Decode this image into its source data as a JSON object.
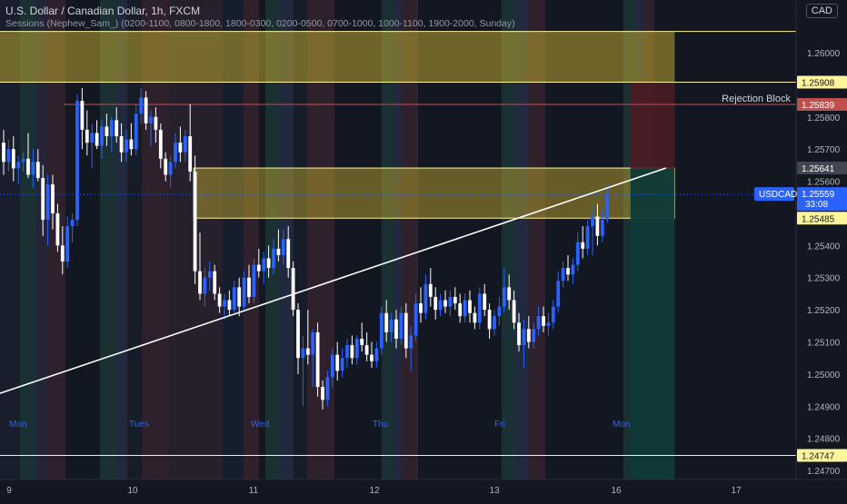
{
  "header": {
    "symbol_line": "U.S. Dollar / Canadian Dollar, 1h, FXCM",
    "indicator_line": "Sessions (Nephew_Sam_) (0200-1100, 0800-1800, 1800-0300, 0200-0500, 0700-1000, 1000-1100, 1900-2000, Sunday)",
    "currency_button": "CAD"
  },
  "colors": {
    "background": "#131722",
    "up_candle": "#2962ff",
    "down_candle": "#ffffff",
    "zone_fill": "#c9b22f",
    "zone_border": "#fff59d",
    "trendline": "#ffffff",
    "rejection_fill": "#4a1c24",
    "target_fill": "#0f3a38",
    "price_label": "#2962ff",
    "level_label": "#fff59d",
    "rejection_label": "#c0504d"
  },
  "chart_data": {
    "type": "candlestick",
    "title": "U.S. Dollar / Canadian Dollar, 1h, FXCM",
    "ylim": [
      1.2465,
      1.2612
    ],
    "y_ticks": [
      "1.26000",
      "1.25800",
      "1.25700",
      "1.25600",
      "1.25400",
      "1.25300",
      "1.25200",
      "1.25100",
      "1.25000",
      "1.24900",
      "1.24800",
      "1.24700"
    ],
    "x_tick_labels": [
      "9",
      "10",
      "11",
      "12",
      "13",
      "16",
      "17"
    ],
    "day_labels": [
      "Mon",
      "Tues",
      "Wed",
      "Thu",
      "Fri",
      "Mon"
    ],
    "candles": [
      {
        "o": 1.2572,
        "h": 1.2576,
        "l": 1.2562,
        "c": 1.2566
      },
      {
        "o": 1.2566,
        "h": 1.2573,
        "l": 1.2563,
        "c": 1.257
      },
      {
        "o": 1.257,
        "h": 1.2574,
        "l": 1.256,
        "c": 1.2564
      },
      {
        "o": 1.2564,
        "h": 1.2568,
        "l": 1.2559,
        "c": 1.2566
      },
      {
        "o": 1.2566,
        "h": 1.2569,
        "l": 1.2563,
        "c": 1.2567
      },
      {
        "o": 1.2567,
        "h": 1.2575,
        "l": 1.2561,
        "c": 1.2562
      },
      {
        "o": 1.2562,
        "h": 1.257,
        "l": 1.2558,
        "c": 1.2566
      },
      {
        "o": 1.2566,
        "h": 1.257,
        "l": 1.256,
        "c": 1.2561
      },
      {
        "o": 1.2561,
        "h": 1.2565,
        "l": 1.2543,
        "c": 1.2548
      },
      {
        "o": 1.2548,
        "h": 1.2562,
        "l": 1.254,
        "c": 1.2559
      },
      {
        "o": 1.2559,
        "h": 1.2562,
        "l": 1.2545,
        "c": 1.255
      },
      {
        "o": 1.255,
        "h": 1.2553,
        "l": 1.2538,
        "c": 1.254
      },
      {
        "o": 1.254,
        "h": 1.2546,
        "l": 1.2531,
        "c": 1.2535
      },
      {
        "o": 1.2535,
        "h": 1.2549,
        "l": 1.2533,
        "c": 1.2546
      },
      {
        "o": 1.2546,
        "h": 1.255,
        "l": 1.2541,
        "c": 1.2548
      },
      {
        "o": 1.2548,
        "h": 1.2587,
        "l": 1.2546,
        "c": 1.2585
      },
      {
        "o": 1.2585,
        "h": 1.2589,
        "l": 1.257,
        "c": 1.2576
      },
      {
        "o": 1.2576,
        "h": 1.2582,
        "l": 1.2568,
        "c": 1.2572
      },
      {
        "o": 1.2572,
        "h": 1.2578,
        "l": 1.2564,
        "c": 1.2575
      },
      {
        "o": 1.2575,
        "h": 1.2579,
        "l": 1.257,
        "c": 1.2571
      },
      {
        "o": 1.2571,
        "h": 1.2579,
        "l": 1.2567,
        "c": 1.2577
      },
      {
        "o": 1.2577,
        "h": 1.2581,
        "l": 1.2571,
        "c": 1.2574
      },
      {
        "o": 1.2574,
        "h": 1.258,
        "l": 1.2569,
        "c": 1.2579
      },
      {
        "o": 1.2579,
        "h": 1.2583,
        "l": 1.2572,
        "c": 1.2574
      },
      {
        "o": 1.2574,
        "h": 1.2578,
        "l": 1.2566,
        "c": 1.2569
      },
      {
        "o": 1.2569,
        "h": 1.2576,
        "l": 1.2566,
        "c": 1.2573
      },
      {
        "o": 1.2573,
        "h": 1.2578,
        "l": 1.2568,
        "c": 1.257
      },
      {
        "o": 1.257,
        "h": 1.2584,
        "l": 1.2568,
        "c": 1.2581
      },
      {
        "o": 1.2581,
        "h": 1.2589,
        "l": 1.2578,
        "c": 1.2586
      },
      {
        "o": 1.2586,
        "h": 1.2588,
        "l": 1.2576,
        "c": 1.2578
      },
      {
        "o": 1.2578,
        "h": 1.2582,
        "l": 1.2571,
        "c": 1.258
      },
      {
        "o": 1.258,
        "h": 1.2583,
        "l": 1.2572,
        "c": 1.2576
      },
      {
        "o": 1.2576,
        "h": 1.2578,
        "l": 1.2564,
        "c": 1.2567
      },
      {
        "o": 1.2567,
        "h": 1.2569,
        "l": 1.256,
        "c": 1.2562
      },
      {
        "o": 1.2562,
        "h": 1.2568,
        "l": 1.2558,
        "c": 1.2566
      },
      {
        "o": 1.2566,
        "h": 1.2575,
        "l": 1.2564,
        "c": 1.2572
      },
      {
        "o": 1.2572,
        "h": 1.2577,
        "l": 1.2566,
        "c": 1.2569
      },
      {
        "o": 1.2569,
        "h": 1.2576,
        "l": 1.2566,
        "c": 1.2574
      },
      {
        "o": 1.2574,
        "h": 1.2584,
        "l": 1.256,
        "c": 1.2563
      },
      {
        "o": 1.2563,
        "h": 1.2568,
        "l": 1.2528,
        "c": 1.2532
      },
      {
        "o": 1.2532,
        "h": 1.2544,
        "l": 1.2523,
        "c": 1.2525
      },
      {
        "o": 1.2525,
        "h": 1.2533,
        "l": 1.2521,
        "c": 1.253
      },
      {
        "o": 1.253,
        "h": 1.2535,
        "l": 1.2526,
        "c": 1.2532
      },
      {
        "o": 1.2532,
        "h": 1.2534,
        "l": 1.2523,
        "c": 1.2525
      },
      {
        "o": 1.2525,
        "h": 1.2527,
        "l": 1.2519,
        "c": 1.2521
      },
      {
        "o": 1.2521,
        "h": 1.2525,
        "l": 1.2517,
        "c": 1.2523
      },
      {
        "o": 1.2523,
        "h": 1.2526,
        "l": 1.2518,
        "c": 1.252
      },
      {
        "o": 1.252,
        "h": 1.2529,
        "l": 1.2519,
        "c": 1.2527
      },
      {
        "o": 1.2527,
        "h": 1.253,
        "l": 1.2518,
        "c": 1.2521
      },
      {
        "o": 1.2521,
        "h": 1.2532,
        "l": 1.252,
        "c": 1.253
      },
      {
        "o": 1.253,
        "h": 1.2534,
        "l": 1.2522,
        "c": 1.2524
      },
      {
        "o": 1.2524,
        "h": 1.2536,
        "l": 1.2522,
        "c": 1.2534
      },
      {
        "o": 1.2534,
        "h": 1.2539,
        "l": 1.253,
        "c": 1.2532
      },
      {
        "o": 1.2532,
        "h": 1.2538,
        "l": 1.2528,
        "c": 1.2536
      },
      {
        "o": 1.2536,
        "h": 1.254,
        "l": 1.253,
        "c": 1.2533
      },
      {
        "o": 1.2533,
        "h": 1.2542,
        "l": 1.2531,
        "c": 1.2539
      },
      {
        "o": 1.2539,
        "h": 1.2545,
        "l": 1.2535,
        "c": 1.2537
      },
      {
        "o": 1.2537,
        "h": 1.2545,
        "l": 1.2534,
        "c": 1.2542
      },
      {
        "o": 1.2542,
        "h": 1.2546,
        "l": 1.253,
        "c": 1.2533
      },
      {
        "o": 1.2533,
        "h": 1.2535,
        "l": 1.2518,
        "c": 1.252
      },
      {
        "o": 1.252,
        "h": 1.2522,
        "l": 1.25,
        "c": 1.2505
      },
      {
        "o": 1.2505,
        "h": 1.2512,
        "l": 1.249,
        "c": 1.2508
      },
      {
        "o": 1.2508,
        "h": 1.252,
        "l": 1.2503,
        "c": 1.2506
      },
      {
        "o": 1.2506,
        "h": 1.2514,
        "l": 1.2496,
        "c": 1.2513
      },
      {
        "o": 1.2513,
        "h": 1.2516,
        "l": 1.2493,
        "c": 1.2496
      },
      {
        "o": 1.2496,
        "h": 1.2498,
        "l": 1.2489,
        "c": 1.2492
      },
      {
        "o": 1.2492,
        "h": 1.2501,
        "l": 1.249,
        "c": 1.2499
      },
      {
        "o": 1.2499,
        "h": 1.2508,
        "l": 1.2496,
        "c": 1.2506
      },
      {
        "o": 1.2506,
        "h": 1.251,
        "l": 1.2498,
        "c": 1.2501
      },
      {
        "o": 1.2501,
        "h": 1.2508,
        "l": 1.2499,
        "c": 1.2505
      },
      {
        "o": 1.2505,
        "h": 1.2511,
        "l": 1.2502,
        "c": 1.2509
      },
      {
        "o": 1.2509,
        "h": 1.2512,
        "l": 1.2503,
        "c": 1.2505
      },
      {
        "o": 1.2505,
        "h": 1.2512,
        "l": 1.2503,
        "c": 1.2511
      },
      {
        "o": 1.2511,
        "h": 1.2516,
        "l": 1.2507,
        "c": 1.2509
      },
      {
        "o": 1.2509,
        "h": 1.2513,
        "l": 1.2504,
        "c": 1.2506
      },
      {
        "o": 1.2506,
        "h": 1.251,
        "l": 1.2502,
        "c": 1.2504
      },
      {
        "o": 1.2504,
        "h": 1.251,
        "l": 1.2502,
        "c": 1.2508
      },
      {
        "o": 1.2508,
        "h": 1.2521,
        "l": 1.2506,
        "c": 1.2519
      },
      {
        "o": 1.2519,
        "h": 1.2523,
        "l": 1.251,
        "c": 1.2513
      },
      {
        "o": 1.2513,
        "h": 1.2519,
        "l": 1.251,
        "c": 1.2517
      },
      {
        "o": 1.2517,
        "h": 1.252,
        "l": 1.2508,
        "c": 1.2511
      },
      {
        "o": 1.2511,
        "h": 1.2521,
        "l": 1.2509,
        "c": 1.2519
      },
      {
        "o": 1.2519,
        "h": 1.2522,
        "l": 1.2505,
        "c": 1.2508
      },
      {
        "o": 1.2508,
        "h": 1.2515,
        "l": 1.2501,
        "c": 1.2512
      },
      {
        "o": 1.2512,
        "h": 1.2525,
        "l": 1.251,
        "c": 1.2522
      },
      {
        "o": 1.2522,
        "h": 1.2527,
        "l": 1.2516,
        "c": 1.2519
      },
      {
        "o": 1.2519,
        "h": 1.2531,
        "l": 1.2517,
        "c": 1.2528
      },
      {
        "o": 1.2528,
        "h": 1.2533,
        "l": 1.2521,
        "c": 1.2524
      },
      {
        "o": 1.2524,
        "h": 1.2527,
        "l": 1.2517,
        "c": 1.252
      },
      {
        "o": 1.252,
        "h": 1.2525,
        "l": 1.2518,
        "c": 1.2523
      },
      {
        "o": 1.2523,
        "h": 1.2526,
        "l": 1.2519,
        "c": 1.2521
      },
      {
        "o": 1.2521,
        "h": 1.2526,
        "l": 1.2518,
        "c": 1.2524
      },
      {
        "o": 1.2524,
        "h": 1.2527,
        "l": 1.252,
        "c": 1.2522
      },
      {
        "o": 1.2522,
        "h": 1.2525,
        "l": 1.2516,
        "c": 1.2518
      },
      {
        "o": 1.2518,
        "h": 1.2525,
        "l": 1.2516,
        "c": 1.2523
      },
      {
        "o": 1.2523,
        "h": 1.2526,
        "l": 1.2516,
        "c": 1.2519
      },
      {
        "o": 1.2519,
        "h": 1.2521,
        "l": 1.2514,
        "c": 1.2516
      },
      {
        "o": 1.2516,
        "h": 1.2527,
        "l": 1.2514,
        "c": 1.2525
      },
      {
        "o": 1.2525,
        "h": 1.2528,
        "l": 1.2518,
        "c": 1.252
      },
      {
        "o": 1.252,
        "h": 1.2522,
        "l": 1.2511,
        "c": 1.2514
      },
      {
        "o": 1.2514,
        "h": 1.252,
        "l": 1.2512,
        "c": 1.2518
      },
      {
        "o": 1.2518,
        "h": 1.2524,
        "l": 1.2515,
        "c": 1.2521
      },
      {
        "o": 1.2521,
        "h": 1.2533,
        "l": 1.2519,
        "c": 1.2527
      },
      {
        "o": 1.2527,
        "h": 1.2531,
        "l": 1.252,
        "c": 1.2523
      },
      {
        "o": 1.2523,
        "h": 1.2526,
        "l": 1.2514,
        "c": 1.2516
      },
      {
        "o": 1.2516,
        "h": 1.2519,
        "l": 1.2507,
        "c": 1.2509
      },
      {
        "o": 1.2509,
        "h": 1.2517,
        "l": 1.2502,
        "c": 1.2514
      },
      {
        "o": 1.2514,
        "h": 1.2518,
        "l": 1.2508,
        "c": 1.251
      },
      {
        "o": 1.251,
        "h": 1.2516,
        "l": 1.2508,
        "c": 1.2514
      },
      {
        "o": 1.2514,
        "h": 1.2521,
        "l": 1.2512,
        "c": 1.2518
      },
      {
        "o": 1.2518,
        "h": 1.2521,
        "l": 1.2513,
        "c": 1.2515
      },
      {
        "o": 1.2515,
        "h": 1.2519,
        "l": 1.2512,
        "c": 1.2516
      },
      {
        "o": 1.2516,
        "h": 1.2523,
        "l": 1.2514,
        "c": 1.2521
      },
      {
        "o": 1.2521,
        "h": 1.2532,
        "l": 1.2519,
        "c": 1.2529
      },
      {
        "o": 1.2529,
        "h": 1.2535,
        "l": 1.2527,
        "c": 1.2533
      },
      {
        "o": 1.2533,
        "h": 1.2537,
        "l": 1.2529,
        "c": 1.2531
      },
      {
        "o": 1.2531,
        "h": 1.2536,
        "l": 1.2528,
        "c": 1.2534
      },
      {
        "o": 1.2534,
        "h": 1.2544,
        "l": 1.2532,
        "c": 1.2541
      },
      {
        "o": 1.2541,
        "h": 1.2546,
        "l": 1.2536,
        "c": 1.2539
      },
      {
        "o": 1.2539,
        "h": 1.2548,
        "l": 1.2537,
        "c": 1.2546
      },
      {
        "o": 1.2546,
        "h": 1.2552,
        "l": 1.2537,
        "c": 1.2549
      },
      {
        "o": 1.2549,
        "h": 1.2553,
        "l": 1.254,
        "c": 1.2543
      },
      {
        "o": 1.2543,
        "h": 1.2551,
        "l": 1.2541,
        "c": 1.2548
      },
      {
        "o": 1.2548,
        "h": 1.2559,
        "l": 1.2547,
        "c": 1.2556
      }
    ],
    "horizontal_levels": [
      {
        "price": 1.26066,
        "label": null
      },
      {
        "price": 1.25908,
        "label": "1.25908"
      },
      {
        "price": 1.24747,
        "label": "1.24747"
      }
    ],
    "zones": [
      {
        "name": "upper-supply-zone",
        "from_bar": -1,
        "to_bar": 136,
        "top": 1.26066,
        "bottom": 1.25908
      },
      {
        "name": "mid-supply-zone",
        "from_bar": 38,
        "to_bar": 136,
        "top": 1.25641,
        "bottom": 1.25485
      },
      {
        "name": "rejection-block",
        "from_bar": 127,
        "to_bar": 136,
        "top": 1.25908,
        "bottom": 1.25641
      },
      {
        "name": "target-area",
        "from_bar": 127,
        "to_bar": 136,
        "top": 1.25641,
        "bottom": 1.2465
      }
    ],
    "rejection_label": "Rejection Block",
    "rejection_line": 1.25839,
    "trendline": {
      "from_bar": -1,
      "from_price": 1.2494,
      "to_bar": 135,
      "to_price": 1.25641
    },
    "current_price_line": 1.25559,
    "price_labels": [
      {
        "value": "1.25908",
        "price": 1.25908,
        "kind": "level"
      },
      {
        "value": "1.25839",
        "price": 1.25839,
        "kind": "rejection"
      },
      {
        "value": "1.25641",
        "price": 1.25641,
        "kind": "neutral"
      },
      {
        "value": "1.25485",
        "price": 1.25485,
        "kind": "level"
      },
      {
        "value": "1.24747",
        "price": 1.24747,
        "kind": "level"
      }
    ],
    "current_price_label": {
      "symbol": "USDCAD",
      "value": "1.25559",
      "countdown": "33:08",
      "price": 1.25559
    }
  }
}
